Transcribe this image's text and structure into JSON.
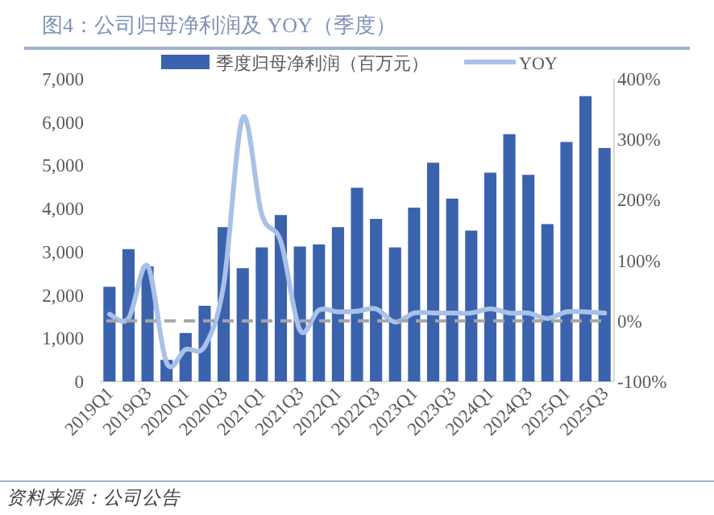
{
  "chart_data": {
    "type": "bar",
    "title": "图4：公司归母净利润及 YOY（季度）",
    "categories": [
      "2019Q1",
      null,
      "2019Q3",
      null,
      "2020Q1",
      null,
      "2020Q3",
      null,
      "2021Q1",
      null,
      "2021Q3",
      null,
      "2022Q1",
      null,
      "2022Q3",
      null,
      "2023Q1",
      null,
      "2023Q3",
      null,
      "2024Q1",
      null,
      "2024Q3",
      null,
      "2025Q1",
      null,
      "2025Q3"
    ],
    "series": [
      {
        "name": "季度归母净利润（百万元）",
        "color": "#3a62ad",
        "values": [
          2190,
          3060,
          2660,
          500,
          1120,
          1750,
          3570,
          2620,
          3100,
          3850,
          3120,
          3170,
          3570,
          4480,
          3760,
          3100,
          4020,
          5060,
          4230,
          3490,
          4830,
          5720,
          4780,
          3640,
          5540,
          6600,
          5400
        ]
      },
      {
        "name": "YOY",
        "type": "line",
        "axis": "y2",
        "color": "#a9c0e8",
        "values": [
          11,
          4,
          91,
          -69,
          -47,
          -42,
          60,
          336,
          176,
          131,
          -15,
          18,
          15,
          16,
          20,
          -2,
          13,
          13,
          13,
          13,
          20,
          13,
          13,
          4,
          15,
          15,
          13
        ]
      }
    ],
    "ylim": [
      0,
      7000
    ],
    "yticks": [
      0,
      {
        "value": 1000,
        "label": "1,000"
      },
      {
        "value": 2000,
        "label": "2,000"
      },
      {
        "value": 3000,
        "label": "3,000"
      },
      {
        "value": 4000,
        "label": "4,000"
      },
      {
        "value": 5000,
        "label": "5,000"
      },
      {
        "value": 6000,
        "label": "6,000"
      },
      {
        "value": 7000,
        "label": "7,000"
      }
    ],
    "y2lim": [
      -100,
      400
    ],
    "y2ticks": [
      {
        "value": -100,
        "label": "-100%"
      },
      {
        "value": 0,
        "label": "0%"
      },
      {
        "value": 100,
        "label": "100%"
      },
      {
        "value": 200,
        "label": "200%"
      },
      {
        "value": 300,
        "label": "300%"
      },
      {
        "value": 400,
        "label": "400%"
      }
    ],
    "ref_lines": [
      {
        "axis": "y2",
        "value": 0,
        "color": "#a6a6a6",
        "line_style": "dashed"
      }
    ],
    "legend": "top",
    "annotations": [
      "资料来源：公司公告"
    ]
  }
}
